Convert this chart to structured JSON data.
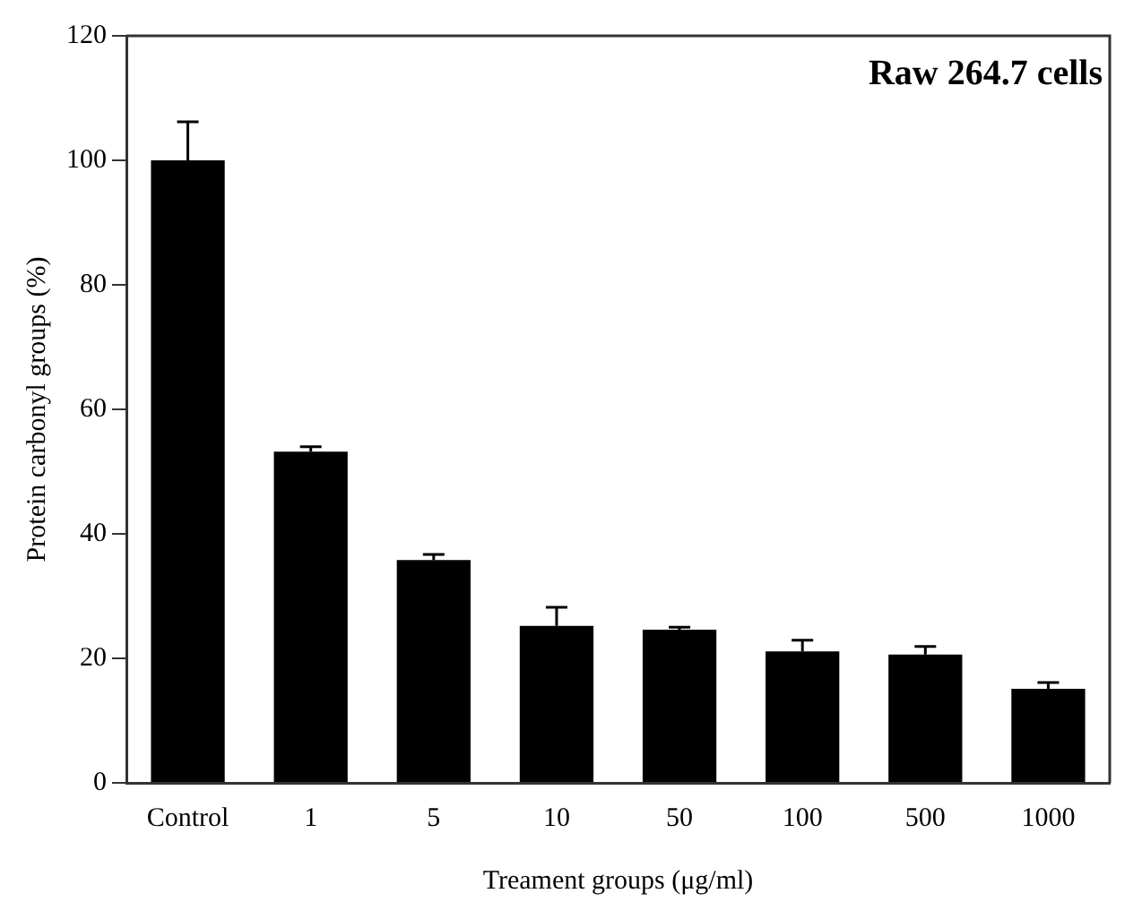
{
  "chart_data": {
    "type": "bar",
    "xlabel": "Treament groups (μg/ml)",
    "ylabel": "Protein carbonyl groups (%)",
    "categories": [
      "Control",
      "1",
      "5",
      "10",
      "50",
      "100",
      "500",
      "1000"
    ],
    "values": [
      100,
      53.2,
      35.8,
      25.2,
      24.6,
      21.1,
      20.6,
      15.1
    ],
    "errors": [
      6.2,
      0.8,
      0.9,
      3,
      0.4,
      1.8,
      1.3,
      1
    ],
    "color": "#000000",
    "ylim": [
      0,
      120
    ],
    "yticks": [
      0,
      20,
      40,
      60,
      80,
      100,
      120
    ],
    "grid": false,
    "legend": false,
    "annotations": [
      "Raw 264.7 cells"
    ]
  }
}
